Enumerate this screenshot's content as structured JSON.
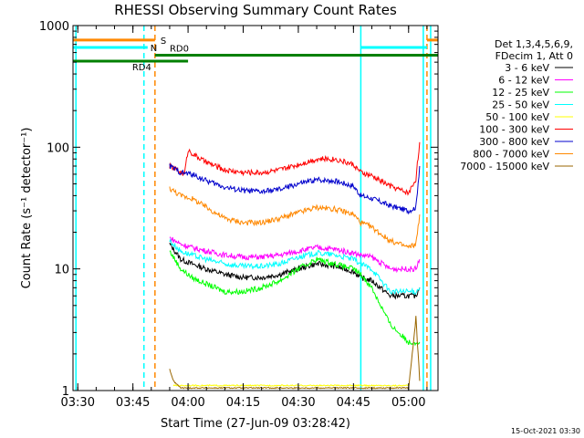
{
  "chart_data": {
    "type": "line",
    "title": "RHESSI Observing Summary Count Rates",
    "xlabel": "Start Time (27-Jun-09 03:28:42)",
    "ylabel": "Count Rate (s⁻¹ detector⁻¹)",
    "ylog": true,
    "xlim": [
      "03:28:42",
      "05:08:00"
    ],
    "ylim": [
      1,
      1000
    ],
    "x_ticks": [
      "03:30",
      "03:45",
      "04:00",
      "04:15",
      "04:30",
      "04:45",
      "05:00"
    ],
    "y_ticks": [
      "1",
      "10",
      "100",
      "1000"
    ],
    "legend_header": [
      "Det 1,3,4,5,6,9,",
      "FDecim 1, Att 0"
    ],
    "legend_location": "right",
    "footer": "15-Oct-2021 03:30",
    "series": [
      {
        "name": "3 - 6 keV",
        "color": "#000000",
        "x": [
          "03:55",
          "03:58",
          "04:01",
          "04:05",
          "04:10",
          "04:15",
          "04:20",
          "04:25",
          "04:30",
          "04:35",
          "04:40",
          "04:45",
          "04:47",
          "04:50",
          "04:55",
          "05:00",
          "05:02",
          "05:03"
        ],
        "values": [
          16,
          12,
          11,
          10,
          9,
          8.5,
          8.5,
          9,
          10,
          11,
          10.5,
          9.5,
          8.5,
          8,
          6,
          6,
          6,
          7
        ]
      },
      {
        "name": "6 - 12 keV",
        "color": "#ff00ff",
        "x": [
          "03:55",
          "03:58",
          "04:01",
          "04:05",
          "04:10",
          "04:15",
          "04:20",
          "04:25",
          "04:30",
          "04:35",
          "04:40",
          "04:45",
          "04:47",
          "04:50",
          "04:55",
          "05:00",
          "05:02",
          "05:03"
        ],
        "values": [
          18,
          16,
          15,
          14,
          13,
          12.5,
          12.5,
          13,
          14,
          15,
          14.5,
          13.5,
          13,
          12.5,
          10,
          10,
          10,
          12
        ]
      },
      {
        "name": "12 - 25 keV",
        "color": "#00ff00",
        "x": [
          "03:55",
          "03:58",
          "04:01",
          "04:05",
          "04:10",
          "04:15",
          "04:20",
          "04:25",
          "04:30",
          "04:35",
          "04:40",
          "04:45",
          "04:47",
          "04:50",
          "04:55",
          "05:00",
          "05:02",
          "05:03"
        ],
        "values": [
          14,
          10,
          8.5,
          7.5,
          6.5,
          6.5,
          7,
          8,
          10,
          12,
          11,
          10,
          9,
          7,
          3.5,
          2.5,
          2.5,
          2.5
        ]
      },
      {
        "name": "25 - 50 keV",
        "color": "#00ffff",
        "x": [
          "03:55",
          "03:58",
          "04:01",
          "04:05",
          "04:10",
          "04:15",
          "04:20",
          "04:25",
          "04:30",
          "04:35",
          "04:40",
          "04:45",
          "04:47",
          "04:50",
          "04:55",
          "05:00",
          "05:02",
          "05:03"
        ],
        "values": [
          17,
          14,
          13,
          12,
          11,
          10.5,
          10.5,
          11,
          12.5,
          13.5,
          13,
          12,
          11,
          10,
          6.5,
          6.5,
          6.5,
          7
        ]
      },
      {
        "name": "50 - 100 keV",
        "color": "#ffff00",
        "x": [
          "03:56",
          "04:00",
          "04:10",
          "04:20",
          "04:30",
          "04:40",
          "04:50",
          "05:00"
        ],
        "values": [
          1.1,
          1.1,
          1.1,
          1.1,
          1.1,
          1.1,
          1.1,
          1.1
        ]
      },
      {
        "name": "100 - 300 keV",
        "color": "#ff0000",
        "x": [
          "03:55",
          "03:57",
          "03:59",
          "04:00",
          "04:02",
          "04:05",
          "04:10",
          "04:15",
          "04:20",
          "04:25",
          "04:30",
          "04:35",
          "04:40",
          "04:45",
          "04:47",
          "04:50",
          "04:55",
          "05:00",
          "05:02",
          "05:03"
        ],
        "values": [
          70,
          65,
          60,
          95,
          85,
          75,
          65,
          62,
          62,
          65,
          72,
          80,
          80,
          72,
          62,
          58,
          48,
          42,
          55,
          110
        ]
      },
      {
        "name": "300 - 800 keV",
        "color": "#0000cc",
        "x": [
          "03:55",
          "03:58",
          "04:01",
          "04:05",
          "04:10",
          "04:15",
          "04:20",
          "04:25",
          "04:30",
          "04:35",
          "04:40",
          "04:45",
          "04:47",
          "04:50",
          "04:55",
          "05:00",
          "05:02",
          "05:03"
        ],
        "values": [
          70,
          62,
          60,
          53,
          47,
          44,
          43,
          45,
          50,
          54,
          53,
          48,
          40,
          38,
          33,
          30,
          32,
          70
        ]
      },
      {
        "name": "800 - 7000 keV",
        "color": "#ff8800",
        "x": [
          "03:55",
          "03:58",
          "04:01",
          "04:05",
          "04:10",
          "04:15",
          "04:20",
          "04:25",
          "04:30",
          "04:35",
          "04:40",
          "04:45",
          "04:47",
          "04:50",
          "04:55",
          "05:00",
          "05:02",
          "05:03"
        ],
        "values": [
          46,
          40,
          38,
          32,
          26,
          24,
          24,
          26,
          29,
          32,
          31,
          28,
          24,
          22,
          17,
          15,
          16,
          28
        ]
      },
      {
        "name": "7000 - 15000 keV",
        "color": "#996600",
        "x": [
          "03:55",
          "03:56",
          "03:58",
          "04:10",
          "04:30",
          "04:50",
          "05:00",
          "05:01",
          "05:02",
          "05:03"
        ],
        "values": [
          1.5,
          1.2,
          1.05,
          1.05,
          1.05,
          1.05,
          1.05,
          2,
          4,
          1.2
        ]
      }
    ],
    "state_flags": [
      {
        "label": "S",
        "color": "#ff8800",
        "value": 760,
        "segments": [
          [
            "03:28:42",
            "03:51"
          ],
          [
            "05:05",
            "05:08"
          ]
        ]
      },
      {
        "label": "N",
        "color": "#00ffff",
        "value": 660,
        "segments": [
          [
            "03:28:42",
            "03:49"
          ],
          [
            "04:47",
            "05:05"
          ]
        ]
      },
      {
        "label": "RD0",
        "color": "#008000",
        "value": 570,
        "segments": [
          [
            "03:51",
            "05:08"
          ]
        ]
      },
      {
        "label": "RD4",
        "color": "#008000",
        "value": 510,
        "segments": [
          [
            "03:28:42",
            "04:00"
          ]
        ]
      }
    ],
    "vertical_markers": [
      {
        "x": "03:29:30",
        "color": "#00ffff",
        "dashed": false
      },
      {
        "x": "03:48",
        "color": "#00ffff",
        "dashed": true
      },
      {
        "x": "03:51",
        "color": "#ff8800",
        "dashed": true
      },
      {
        "x": "04:47",
        "color": "#00ffff",
        "dashed": false
      },
      {
        "x": "05:04",
        "color": "#00ffff",
        "dashed": false
      },
      {
        "x": "05:05",
        "color": "#ff8800",
        "dashed": true
      },
      {
        "x": "05:06",
        "color": "#00ffff",
        "dashed": false
      }
    ]
  }
}
